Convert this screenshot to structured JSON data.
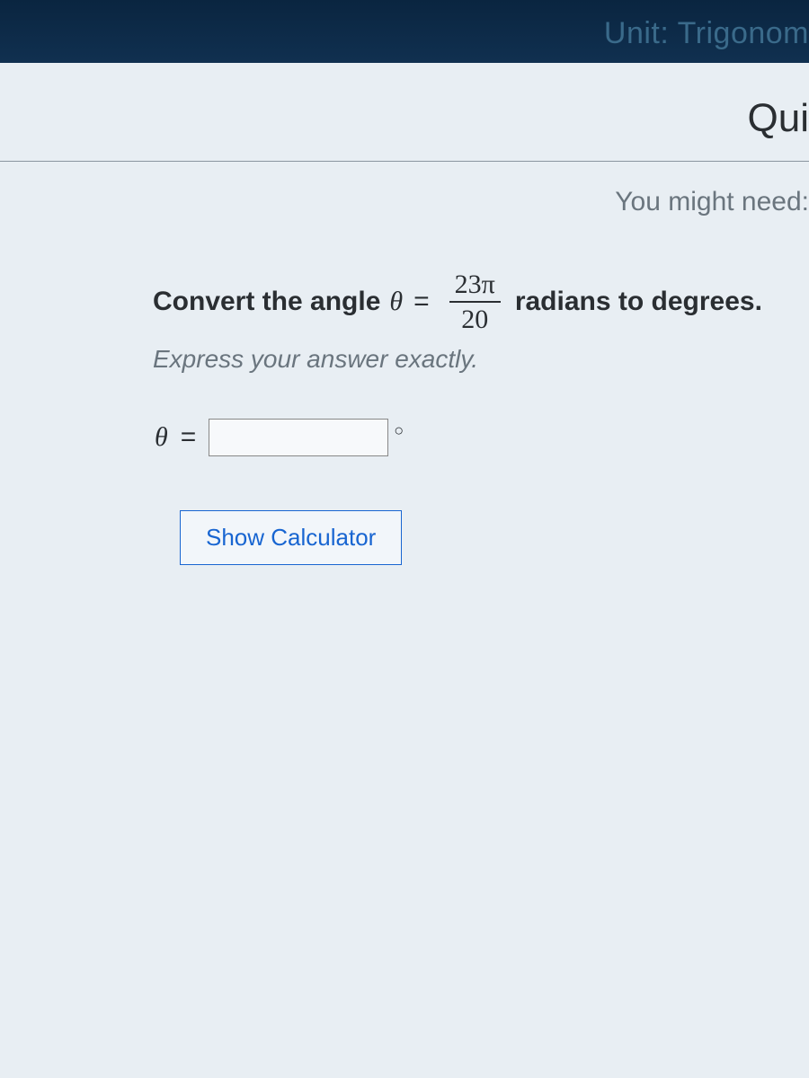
{
  "header": {
    "unit_text": "Unit: Trigonom",
    "quiz_text": "Qui",
    "you_might_need": "You might need:"
  },
  "question": {
    "prefix": "Convert the angle",
    "variable": "θ",
    "equals": "=",
    "fraction_numerator": "23π",
    "fraction_denominator": "20",
    "suffix": "radians to degrees.",
    "instruction": "Express your answer exactly."
  },
  "answer": {
    "variable": "θ",
    "equals": "=",
    "degree_symbol": "○",
    "input_value": ""
  },
  "calculator": {
    "button_label": "Show Calculator"
  },
  "colors": {
    "top_bar_bg": "#0a2540",
    "content_bg": "#e8eef3",
    "link_color": "#1865d1",
    "text_dark": "#2a2e32",
    "text_muted": "#6a757e"
  }
}
